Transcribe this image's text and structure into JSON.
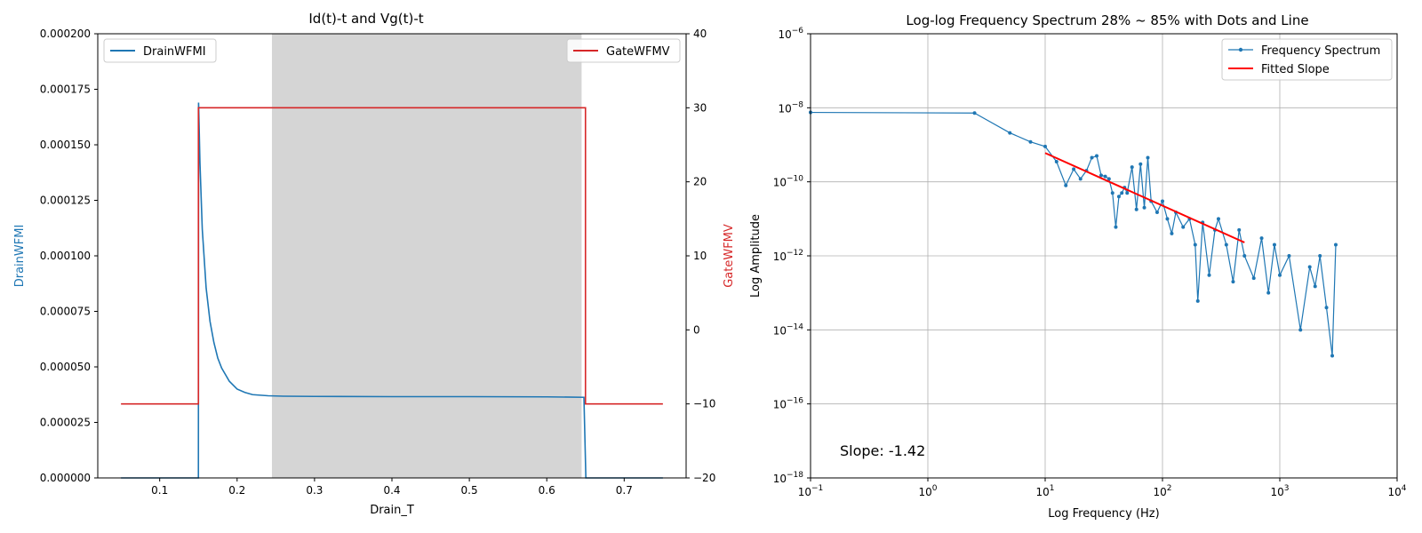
{
  "chart_data": [
    {
      "type": "line",
      "title": "Id(t)-t and Vg(t)-t",
      "xlabel": "Drain_T",
      "ylabel": "DrainWFMI",
      "y2label": "GateWFMV",
      "xlim": [
        0.02,
        0.78
      ],
      "ylim": [
        0,
        0.0002
      ],
      "y2lim": [
        -20,
        40
      ],
      "grid": false,
      "xticks": [
        0.1,
        0.2,
        0.3,
        0.4,
        0.5,
        0.6,
        0.7
      ],
      "xtick_labels": [
        "0.1",
        "0.2",
        "0.3",
        "0.4",
        "0.5",
        "0.6",
        "0.7"
      ],
      "yticks": [
        0,
        2.5e-05,
        5e-05,
        7.5e-05,
        0.0001,
        0.000125,
        0.00015,
        0.000175,
        0.0002
      ],
      "ytick_labels": [
        "0.000000",
        "0.000025",
        "0.000050",
        "0.000075",
        "0.000100",
        "0.000125",
        "0.000150",
        "0.000175",
        "0.000200"
      ],
      "y2ticks": [
        -20,
        -10,
        0,
        10,
        20,
        30,
        40
      ],
      "y2tick_labels": [
        "−20",
        "−10",
        "0",
        "10",
        "20",
        "30",
        "40"
      ],
      "shaded_region": {
        "x_start": 0.245,
        "x_end": 0.645,
        "color": "#d5d5d5"
      },
      "series": [
        {
          "name": "DrainWFMI",
          "axis": "left",
          "color": "#1f77b4",
          "x": [
            0.05,
            0.15,
            0.1502,
            0.1505,
            0.152,
            0.155,
            0.16,
            0.165,
            0.17,
            0.175,
            0.18,
            0.19,
            0.2,
            0.21,
            0.22,
            0.24,
            0.26,
            0.3,
            0.4,
            0.5,
            0.6,
            0.648,
            0.6505,
            0.75
          ],
          "values": [
            0.0,
            0.0,
            0.000169,
            0.000165,
            0.000142,
            0.000112,
            8.55e-05,
            7.05e-05,
            6.1e-05,
            5.4e-05,
            4.95e-05,
            4.35e-05,
            4e-05,
            3.85e-05,
            3.75e-05,
            3.7e-05,
            3.68e-05,
            3.67e-05,
            3.66e-05,
            3.66e-05,
            3.65e-05,
            3.63e-05,
            0.0,
            0.0
          ]
        },
        {
          "name": "GateWFMV",
          "axis": "right",
          "color": "#d62728",
          "x": [
            0.05,
            0.15,
            0.15,
            0.65,
            0.65,
            0.75
          ],
          "values": [
            -10,
            -10,
            30,
            30,
            -10,
            -10
          ]
        }
      ],
      "legends": [
        {
          "label": "DrainWFMI",
          "color": "#1f77b4",
          "position": "upper-left"
        },
        {
          "label": "GateWFMV",
          "color": "#d62728",
          "position": "upper-right"
        }
      ]
    },
    {
      "type": "line",
      "title": "Log-log Frequency Spectrum 28% ~ 85% with Dots and Line",
      "xlabel": "Log Frequency (Hz)",
      "ylabel": "Log Amplitude",
      "xscale": "log",
      "yscale": "log",
      "xlim": [
        0.1,
        10000
      ],
      "ylim": [
        1e-18,
        1e-06
      ],
      "grid": true,
      "xticks": [
        0.1,
        1,
        10,
        100,
        1000,
        10000
      ],
      "xtick_exponents": [
        "−1",
        "0",
        "1",
        "2",
        "3",
        "4"
      ],
      "yticks": [
        1e-18,
        1e-16,
        1e-14,
        1e-12,
        1e-10,
        1e-08,
        1e-06
      ],
      "ytick_exponents": [
        "−18",
        "−16",
        "−14",
        "−12",
        "−10",
        "−8",
        "−6"
      ],
      "tick_base": "10",
      "annotation": "Slope: -1.42",
      "series": [
        {
          "name": "Frequency Spectrum",
          "color": "#1f77b4",
          "marker": "dot",
          "x": [
            0.1,
            2.5,
            5,
            7.5,
            10,
            12.5,
            15,
            17.5,
            20,
            22.5,
            25,
            27.5,
            30,
            32.5,
            35,
            37.5,
            40,
            42.5,
            45,
            47.5,
            50,
            55,
            60,
            65,
            70,
            75,
            80,
            90,
            100,
            110,
            120,
            130,
            150,
            170,
            190,
            200,
            220,
            250,
            280,
            300,
            350,
            400,
            450,
            500,
            600,
            700,
            800,
            900,
            1000,
            1200,
            1500,
            1800,
            2000,
            2200,
            2500,
            2800,
            3000
          ],
          "values": [
            7.5e-09,
            7.2e-09,
            2.1e-09,
            1.2e-09,
            9e-10,
            3.5e-10,
            8e-11,
            2.2e-10,
            1.2e-10,
            2e-10,
            4.5e-10,
            5e-10,
            1.5e-10,
            1.4e-10,
            1.2e-10,
            5e-11,
            6e-12,
            4e-11,
            5e-11,
            7e-11,
            5e-11,
            2.5e-10,
            1.8e-11,
            3e-10,
            2e-11,
            4.5e-10,
            3e-11,
            1.5e-11,
            3e-11,
            1e-11,
            4e-12,
            1.5e-11,
            6e-12,
            1e-11,
            2e-12,
            6e-14,
            8e-12,
            3e-13,
            5e-12,
            1e-11,
            2e-12,
            2e-13,
            5e-12,
            1e-12,
            2.5e-13,
            3e-12,
            1e-13,
            2e-12,
            3e-13,
            1e-12,
            1e-14,
            5e-13,
            1.5e-13,
            1e-12,
            4e-14,
            2e-15,
            2e-12
          ]
        },
        {
          "name": "Fitted Slope",
          "color": "#ff0000",
          "x": [
            10,
            500
          ],
          "values": [
            6e-10,
            2.3e-12
          ]
        }
      ],
      "legend_position": "upper-right"
    }
  ]
}
